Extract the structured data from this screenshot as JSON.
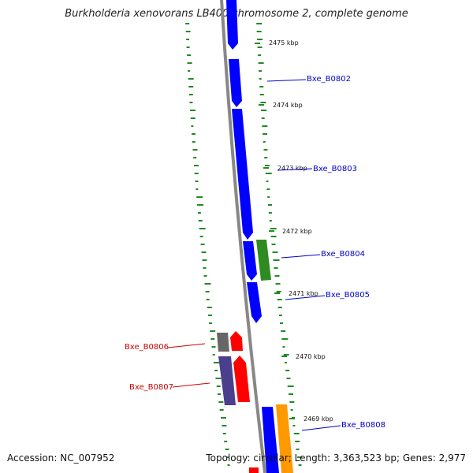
{
  "title": "Burkholderia xenovorans LB400 chromosome 2, complete genome",
  "footer": {
    "accession": "Accession: NC_007952",
    "summary": "Topology: circular; Length: 3,363,523 bp; Genes: 2,977"
  },
  "ticks": [
    {
      "label": "2475 kbp"
    },
    {
      "label": "2474 kbp"
    },
    {
      "label": "2473 kbp"
    },
    {
      "label": "2472 kbp"
    },
    {
      "label": "2471 kbp"
    },
    {
      "label": "2470 kbp"
    },
    {
      "label": "2469 kbp"
    }
  ],
  "genes": [
    {
      "label": "Bxe_B0802",
      "color": "#0000cc"
    },
    {
      "label": "Bxe_B0803",
      "color": "#0000cc"
    },
    {
      "label": "Bxe_B0804",
      "color": "#0000cc"
    },
    {
      "label": "Bxe_B0805",
      "color": "#0000cc"
    },
    {
      "label": "Bxe_B0806",
      "color": "#cc0000"
    },
    {
      "label": "Bxe_B0807",
      "color": "#cc0000"
    },
    {
      "label": "Bxe_B0808",
      "color": "#0000cc"
    }
  ],
  "colors": {
    "backbone": "#888888",
    "forward_cds": "#0000ff",
    "reverse_cds": "#ff0000",
    "rna": "#2e8b22",
    "other": "#666666",
    "hypothetical": "#4a3f8c",
    "orange_feature": "#ff9900",
    "gc_dots": "#228b22"
  }
}
